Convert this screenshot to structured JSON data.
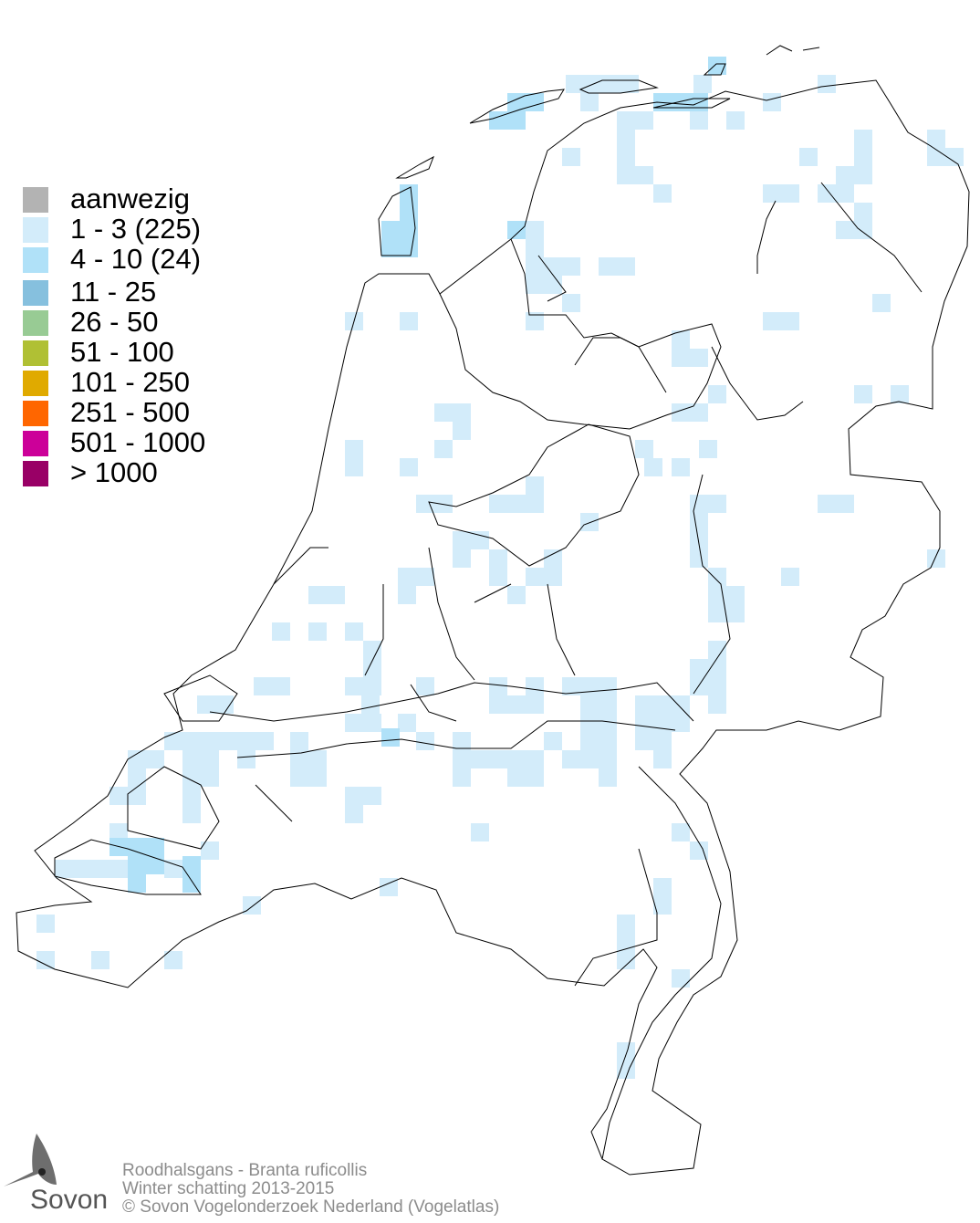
{
  "legend": {
    "items": [
      {
        "label": "aanwezig",
        "color": "#b3b3b3"
      },
      {
        "label": "1 - 3 (225)",
        "color": "#d3ecfa"
      },
      {
        "label": "4 - 10 (24)",
        "color": "#b0e1f8"
      },
      {
        "label": "11 - 25",
        "color": "#86c0de"
      },
      {
        "label": "26 - 50",
        "color": "#98cb94"
      },
      {
        "label": "51 - 100",
        "color": "#b0c034"
      },
      {
        "label": "101 - 250",
        "color": "#e0aa00"
      },
      {
        "label": "251 - 500",
        "color": "#ff6600"
      },
      {
        "label": "501 - 1000",
        "color": "#cc0099"
      },
      {
        "label": "> 1000",
        "color": "#990066"
      }
    ]
  },
  "footer": {
    "species": "Roodhalsgans - Branta ruficollis",
    "period": "Winter schatting 2013-2015",
    "copyright": "© Sovon Vogelonderzoek Nederland (Vogelatlas)"
  },
  "logo": {
    "text": "Sovon"
  }
}
